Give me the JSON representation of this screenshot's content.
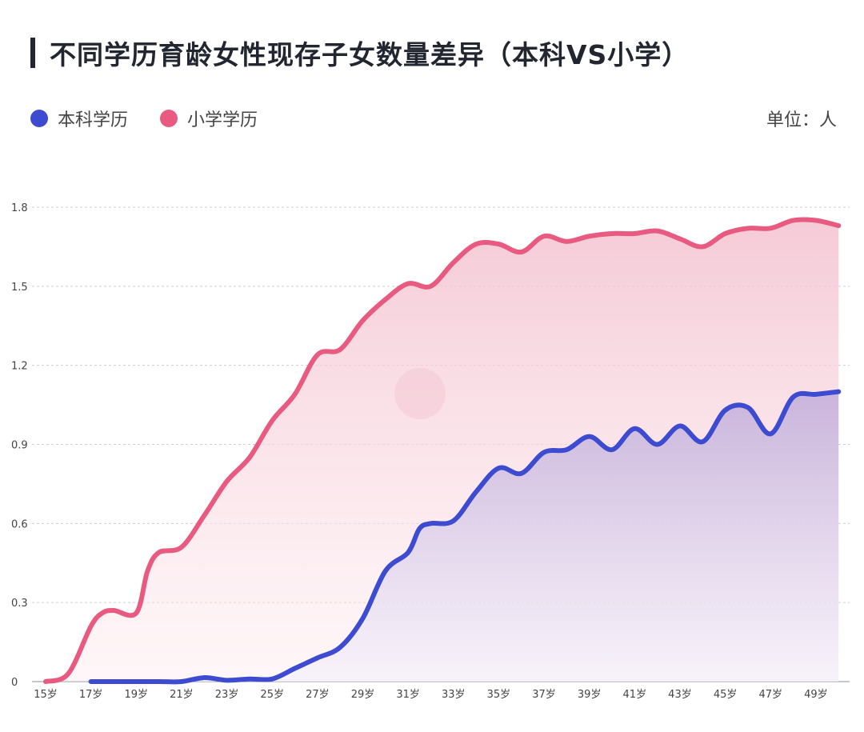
{
  "title": "不同学历育龄女性现存子女数量差异（本科VS小学）",
  "unit": "单位：人",
  "colors": {
    "bachelor": "#3d4bd1",
    "primary": "#e85a80",
    "title_bar": "#222630"
  },
  "chart_data": {
    "type": "area",
    "title": "不同学历育龄女性现存子女数量差异（本科VS小学）",
    "ylim": [
      0,
      1.8
    ],
    "y_ticks": [
      "0",
      "0.3",
      "0.6",
      "0.9",
      "1.2",
      "1.5",
      "1.8"
    ],
    "x_ticks": [
      "15岁",
      "17岁",
      "19岁",
      "21岁",
      "23岁",
      "25岁",
      "27岁",
      "29岁",
      "31岁",
      "33岁",
      "35岁",
      "37岁",
      "39岁",
      "41岁",
      "43岁",
      "45岁",
      "47岁",
      "49岁"
    ],
    "grid": true,
    "legend_position": "top-left",
    "series": [
      {
        "name": "本科学历",
        "color": "#3d4bd1",
        "x": [
          17,
          18,
          19,
          20,
          21,
          22,
          23,
          24,
          25,
          26,
          27,
          28,
          29,
          30,
          31,
          31.5,
          32,
          33,
          34,
          35,
          36,
          37,
          38,
          39,
          40,
          41,
          42,
          43,
          44,
          45,
          46,
          47,
          48,
          49,
          50
        ],
        "values": [
          0,
          0,
          0,
          0,
          0,
          0.015,
          0.005,
          0.01,
          0.01,
          0.05,
          0.09,
          0.13,
          0.24,
          0.42,
          0.49,
          0.58,
          0.6,
          0.61,
          0.72,
          0.81,
          0.79,
          0.87,
          0.88,
          0.93,
          0.88,
          0.96,
          0.9,
          0.97,
          0.91,
          1.03,
          1.04,
          0.94,
          1.08,
          1.09,
          1.1
        ]
      },
      {
        "name": "小学学历",
        "color": "#e85a80",
        "x": [
          15,
          16,
          17,
          17.5,
          18,
          19,
          19.5,
          20,
          21,
          22,
          23,
          24,
          25,
          26,
          27,
          28,
          29,
          30,
          31,
          32,
          33,
          34,
          35,
          36,
          37,
          38,
          39,
          40,
          41,
          42,
          43,
          44,
          45,
          46,
          47,
          48,
          49,
          50
        ],
        "values": [
          0,
          0.03,
          0.21,
          0.26,
          0.27,
          0.26,
          0.42,
          0.49,
          0.51,
          0.63,
          0.76,
          0.85,
          0.99,
          1.09,
          1.24,
          1.26,
          1.37,
          1.45,
          1.51,
          1.5,
          1.59,
          1.66,
          1.66,
          1.63,
          1.69,
          1.67,
          1.69,
          1.7,
          1.7,
          1.71,
          1.68,
          1.65,
          1.7,
          1.72,
          1.72,
          1.75,
          1.75,
          1.73
        ]
      }
    ]
  }
}
